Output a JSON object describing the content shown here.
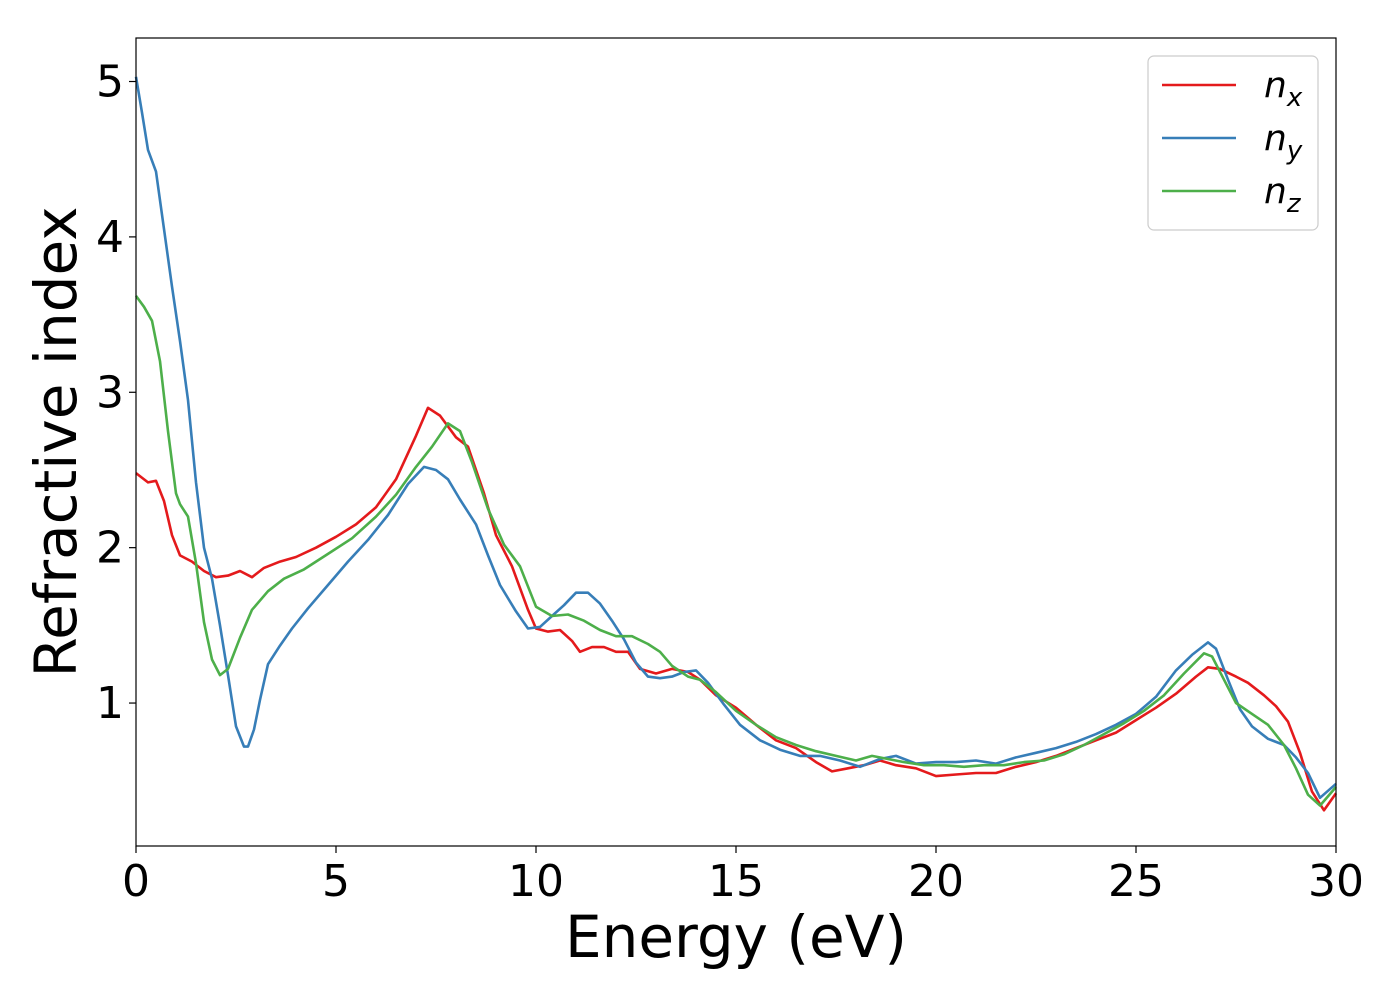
{
  "chart_data": {
    "type": "line",
    "title": "",
    "xlabel": "Energy (eV)",
    "ylabel": "Refractive index",
    "xlim": [
      0,
      30
    ],
    "ylim": [
      0.08,
      5.28
    ],
    "xticks": [
      0,
      5,
      10,
      15,
      20,
      25,
      30
    ],
    "yticks": [
      1,
      2,
      3,
      4,
      5
    ],
    "grid": false,
    "legend_position": "top-right",
    "series": [
      {
        "name": "n_x",
        "legend_base": "n",
        "legend_sub": "x",
        "color": "#e41a1c",
        "x": [
          0,
          0.3,
          0.5,
          0.7,
          0.9,
          1.1,
          1.4,
          1.7,
          2.0,
          2.3,
          2.6,
          2.9,
          3.2,
          3.6,
          4.0,
          4.5,
          5.0,
          5.5,
          6.0,
          6.5,
          7.0,
          7.3,
          7.6,
          8.0,
          8.3,
          8.7,
          9.0,
          9.4,
          9.8,
          10.0,
          10.3,
          10.6,
          10.9,
          11.1,
          11.4,
          11.7,
          12.0,
          12.3,
          12.6,
          13.0,
          13.4,
          13.8,
          14.1,
          14.5,
          15.0,
          15.5,
          16.0,
          16.5,
          17.0,
          17.4,
          17.8,
          18.2,
          18.6,
          19.0,
          19.5,
          20.0,
          20.5,
          21.0,
          21.5,
          22.0,
          22.5,
          23.0,
          23.5,
          24.0,
          24.5,
          25.0,
          25.5,
          26.0,
          26.5,
          26.8,
          27.1,
          27.5,
          27.8,
          28.2,
          28.5,
          28.8,
          29.1,
          29.4,
          29.7,
          30.0
        ],
        "y": [
          2.48,
          2.42,
          2.43,
          2.3,
          2.08,
          1.95,
          1.91,
          1.85,
          1.81,
          1.82,
          1.85,
          1.81,
          1.87,
          1.91,
          1.94,
          2.0,
          2.07,
          2.15,
          2.26,
          2.44,
          2.72,
          2.9,
          2.85,
          2.71,
          2.65,
          2.35,
          2.08,
          1.88,
          1.6,
          1.48,
          1.46,
          1.47,
          1.4,
          1.33,
          1.36,
          1.36,
          1.33,
          1.33,
          1.22,
          1.19,
          1.22,
          1.2,
          1.15,
          1.05,
          0.97,
          0.86,
          0.76,
          0.71,
          0.62,
          0.56,
          0.58,
          0.6,
          0.63,
          0.6,
          0.58,
          0.53,
          0.54,
          0.55,
          0.55,
          0.59,
          0.62,
          0.66,
          0.71,
          0.76,
          0.81,
          0.89,
          0.97,
          1.06,
          1.17,
          1.23,
          1.22,
          1.17,
          1.13,
          1.05,
          0.98,
          0.88,
          0.68,
          0.43,
          0.31,
          0.42
        ]
      },
      {
        "name": "n_y",
        "legend_base": "n",
        "legend_sub": "y",
        "color": "#377eb8",
        "x": [
          0,
          0.15,
          0.3,
          0.5,
          0.7,
          0.9,
          1.1,
          1.3,
          1.5,
          1.7,
          1.9,
          2.1,
          2.3,
          2.5,
          2.7,
          2.8,
          2.95,
          3.1,
          3.3,
          3.6,
          3.9,
          4.3,
          4.8,
          5.3,
          5.8,
          6.3,
          6.8,
          7.2,
          7.5,
          7.8,
          8.1,
          8.5,
          8.8,
          9.1,
          9.5,
          9.8,
          10.1,
          10.4,
          10.7,
          11.0,
          11.3,
          11.6,
          11.9,
          12.2,
          12.5,
          12.8,
          13.1,
          13.4,
          13.7,
          14.0,
          14.3,
          14.7,
          15.1,
          15.6,
          16.1,
          16.6,
          17.1,
          17.6,
          18.1,
          18.6,
          19.0,
          19.5,
          20.0,
          20.5,
          21.0,
          21.5,
          22.0,
          22.5,
          23.0,
          23.5,
          24.0,
          24.5,
          25.0,
          25.5,
          26.0,
          26.4,
          26.8,
          27.0,
          27.3,
          27.6,
          27.9,
          28.3,
          28.7,
          29.0,
          29.3,
          29.6,
          30.0
        ],
        "y": [
          5.03,
          4.8,
          4.56,
          4.42,
          4.05,
          3.68,
          3.33,
          2.95,
          2.42,
          2.0,
          1.8,
          1.5,
          1.18,
          0.85,
          0.72,
          0.72,
          0.83,
          1.02,
          1.25,
          1.37,
          1.48,
          1.61,
          1.76,
          1.91,
          2.05,
          2.21,
          2.41,
          2.52,
          2.5,
          2.44,
          2.31,
          2.15,
          1.95,
          1.76,
          1.59,
          1.48,
          1.49,
          1.56,
          1.63,
          1.71,
          1.71,
          1.64,
          1.53,
          1.41,
          1.26,
          1.17,
          1.16,
          1.17,
          1.2,
          1.21,
          1.13,
          0.99,
          0.86,
          0.76,
          0.7,
          0.66,
          0.66,
          0.63,
          0.59,
          0.64,
          0.66,
          0.61,
          0.62,
          0.62,
          0.63,
          0.61,
          0.65,
          0.68,
          0.71,
          0.75,
          0.8,
          0.86,
          0.93,
          1.04,
          1.21,
          1.31,
          1.39,
          1.35,
          1.15,
          0.96,
          0.85,
          0.77,
          0.73,
          0.65,
          0.55,
          0.39,
          0.48
        ]
      },
      {
        "name": "n_z",
        "legend_base": "n",
        "legend_sub": "z",
        "color": "#4daf4a",
        "x": [
          0,
          0.2,
          0.4,
          0.6,
          0.8,
          1.0,
          1.1,
          1.3,
          1.5,
          1.7,
          1.9,
          2.1,
          2.3,
          2.6,
          2.9,
          3.3,
          3.7,
          4.2,
          4.8,
          5.4,
          6.0,
          6.5,
          7.0,
          7.4,
          7.8,
          8.1,
          8.4,
          8.8,
          9.2,
          9.6,
          10.0,
          10.4,
          10.8,
          11.2,
          11.6,
          12.0,
          12.4,
          12.8,
          13.1,
          13.4,
          13.8,
          14.1,
          14.5,
          15.0,
          15.5,
          16.0,
          16.5,
          17.0,
          17.5,
          18.0,
          18.4,
          18.8,
          19.2,
          19.7,
          20.2,
          20.7,
          21.2,
          21.7,
          22.2,
          22.7,
          23.2,
          23.7,
          24.2,
          24.7,
          25.2,
          25.7,
          26.2,
          26.7,
          26.9,
          27.2,
          27.5,
          27.9,
          28.3,
          28.7,
          29.0,
          29.3,
          29.6,
          30.0
        ],
        "y": [
          3.62,
          3.55,
          3.46,
          3.2,
          2.75,
          2.35,
          2.28,
          2.2,
          1.9,
          1.52,
          1.28,
          1.18,
          1.22,
          1.42,
          1.6,
          1.72,
          1.8,
          1.86,
          1.96,
          2.06,
          2.2,
          2.34,
          2.52,
          2.65,
          2.8,
          2.75,
          2.55,
          2.25,
          2.02,
          1.88,
          1.62,
          1.56,
          1.57,
          1.53,
          1.47,
          1.43,
          1.43,
          1.38,
          1.33,
          1.24,
          1.17,
          1.15,
          1.07,
          0.95,
          0.86,
          0.78,
          0.73,
          0.69,
          0.66,
          0.63,
          0.66,
          0.64,
          0.62,
          0.6,
          0.6,
          0.59,
          0.6,
          0.6,
          0.62,
          0.63,
          0.67,
          0.73,
          0.8,
          0.87,
          0.95,
          1.05,
          1.19,
          1.32,
          1.3,
          1.15,
          1.0,
          0.93,
          0.86,
          0.73,
          0.58,
          0.41,
          0.34,
          0.46
        ]
      }
    ]
  }
}
